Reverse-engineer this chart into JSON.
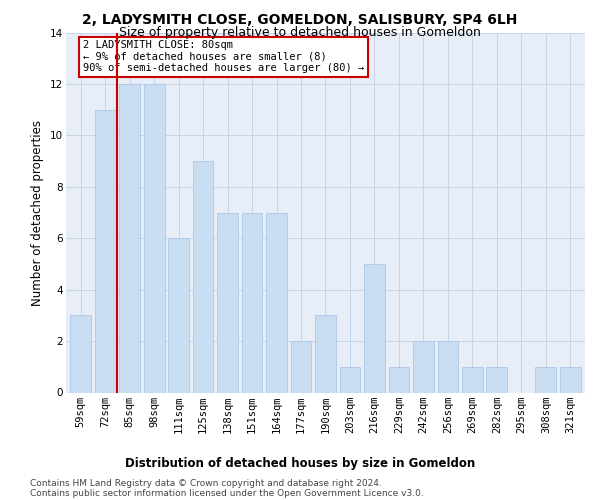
{
  "title": "2, LADYSMITH CLOSE, GOMELDON, SALISBURY, SP4 6LH",
  "subtitle": "Size of property relative to detached houses in Gomeldon",
  "xlabel": "Distribution of detached houses by size in Gomeldon",
  "ylabel": "Number of detached properties",
  "categories": [
    "59sqm",
    "72sqm",
    "85sqm",
    "98sqm",
    "111sqm",
    "125sqm",
    "138sqm",
    "151sqm",
    "164sqm",
    "177sqm",
    "190sqm",
    "203sqm",
    "216sqm",
    "229sqm",
    "242sqm",
    "256sqm",
    "269sqm",
    "282sqm",
    "295sqm",
    "308sqm",
    "321sqm"
  ],
  "values": [
    3,
    11,
    12,
    12,
    6,
    9,
    7,
    7,
    7,
    2,
    3,
    1,
    5,
    1,
    2,
    2,
    1,
    1,
    0,
    1,
    1
  ],
  "bar_color": "#c9ddf2",
  "bar_edgecolor": "#aec8e8",
  "vline_color": "#cc0000",
  "vline_pos": 1.5,
  "annotation_text": "2 LADYSMITH CLOSE: 80sqm\n← 9% of detached houses are smaller (8)\n90% of semi-detached houses are larger (80) →",
  "annotation_box_color": "#ffffff",
  "annotation_box_edgecolor": "#cc0000",
  "ylim": [
    0,
    14
  ],
  "yticks": [
    0,
    2,
    4,
    6,
    8,
    10,
    12,
    14
  ],
  "footer_line1": "Contains HM Land Registry data © Crown copyright and database right 2024.",
  "footer_line2": "Contains public sector information licensed under the Open Government Licence v3.0.",
  "title_fontsize": 10,
  "subtitle_fontsize": 9,
  "axis_label_fontsize": 8.5,
  "tick_fontsize": 7.5,
  "annotation_fontsize": 7.5,
  "footer_fontsize": 6.5,
  "background_color": "#ffffff",
  "plot_bg_color": "#e8eef8",
  "grid_color": "#c8d4e8"
}
